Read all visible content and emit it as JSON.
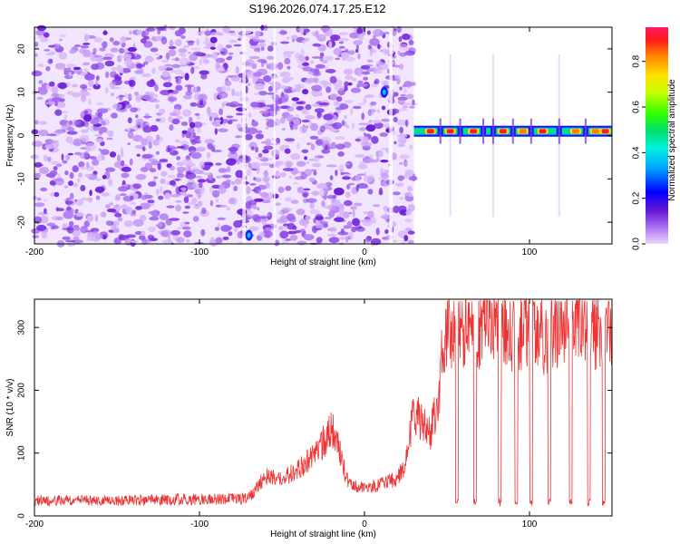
{
  "page_title": "S196.2026.074.17.25.E12",
  "chart_data": [
    {
      "type": "heatmap",
      "title": "S196.2026.074.17.25.E12",
      "xlabel": "Height of straight line (km)",
      "ylabel": "Frequency (Hz)",
      "xlim": [
        -200,
        150
      ],
      "ylim": [
        -25,
        25
      ],
      "x_ticks": [
        -200,
        -100,
        0,
        100
      ],
      "y_ticks": [
        -20,
        -10,
        0,
        10,
        20
      ],
      "colorbar": {
        "label": "Normalized spectral amplitude",
        "range": [
          0,
          0.95
        ],
        "ticks": [
          0.0,
          0.2,
          0.4,
          0.6,
          0.8
        ]
      },
      "noise_region_x": [
        -200,
        30
      ],
      "clean_region_x": [
        30,
        150
      ],
      "signal_line_frequency": 1,
      "signal_line_x": [
        30,
        150
      ],
      "peak_x_values": [
        40,
        52,
        66,
        84,
        96,
        108,
        128,
        140,
        146
      ],
      "peak_amplitudes": [
        0.85,
        0.9,
        0.85,
        0.85,
        0.8,
        0.85,
        0.8,
        0.8,
        0.85
      ],
      "minima_x_values": [
        46,
        58,
        72,
        78,
        90,
        101,
        118,
        134
      ],
      "notable_spots": [
        {
          "x": -70,
          "y": -23,
          "amplitude": 0.4
        },
        {
          "x": 12,
          "y": 10,
          "amplitude": 0.25
        }
      ]
    },
    {
      "type": "line",
      "xlabel": "Height of straight line (km)",
      "ylabel": "SNR (10 * v/v)",
      "xlim": [
        -200,
        150
      ],
      "ylim": [
        0,
        345
      ],
      "x_ticks": [
        -200,
        -100,
        0,
        100
      ],
      "y_ticks": [
        0,
        100,
        200,
        300
      ],
      "series": [
        {
          "name": "SNR",
          "color": "#ee3333",
          "x": [
            -200,
            -150,
            -100,
            -70,
            -60,
            -50,
            -40,
            -30,
            -25,
            -20,
            -15,
            -10,
            0,
            10,
            20,
            25,
            28,
            30,
            35,
            40,
            45,
            48,
            50,
            55,
            60,
            70,
            80,
            90,
            100,
            110,
            120,
            130,
            140,
            148,
            150
          ],
          "y": [
            22,
            22,
            24,
            25,
            60,
            55,
            70,
            90,
            110,
            130,
            95,
            50,
            40,
            48,
            55,
            80,
            130,
            160,
            135,
            120,
            180,
            260,
            290,
            275,
            285,
            280,
            295,
            275,
            285,
            270,
            290,
            300,
            280,
            270,
            250
          ]
        }
      ],
      "dip_x_values": [
        56,
        67,
        82,
        92,
        101,
        112,
        125,
        136,
        145
      ],
      "dip_level": 15
    }
  ]
}
